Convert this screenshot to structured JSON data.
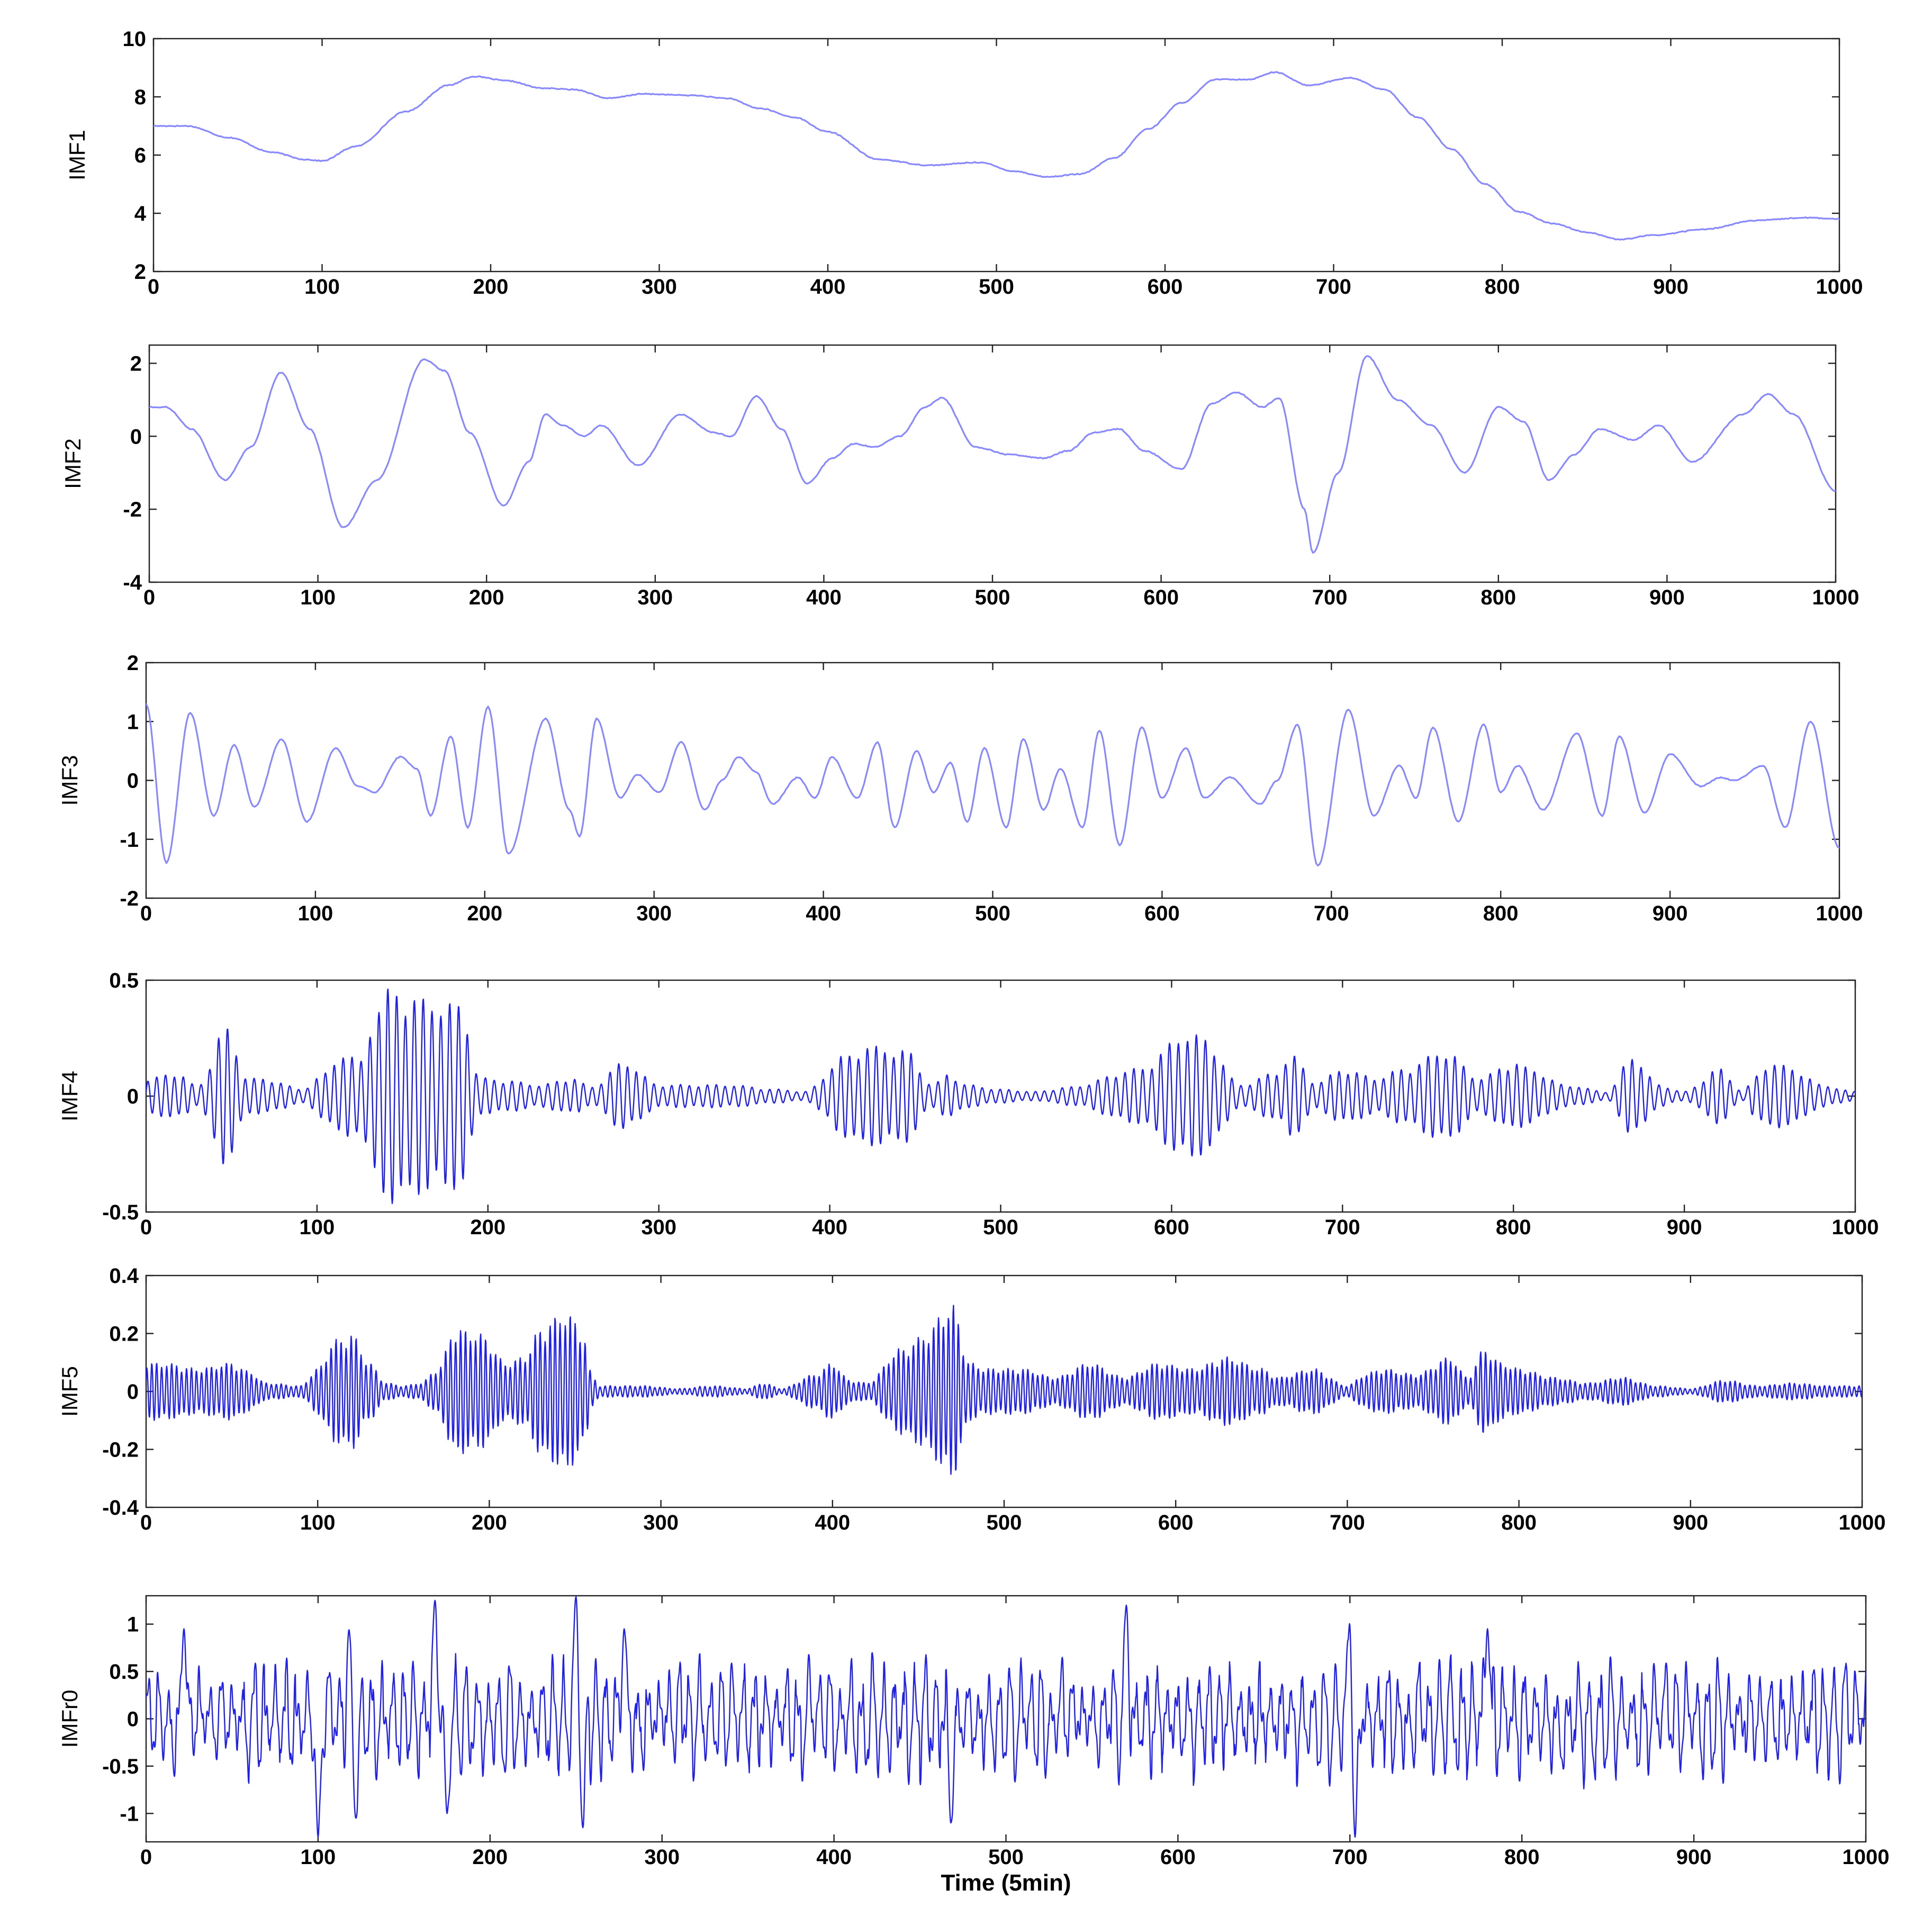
{
  "colors": {
    "line_light": "#8888ff",
    "line_dark": "#2020ee",
    "axis": "#222222"
  },
  "chart_data": [
    {
      "type": "line",
      "ylabel": "IMF1",
      "xlim": [
        0,
        1000
      ],
      "ylim": [
        2,
        10
      ],
      "xticks": [
        0,
        100,
        200,
        300,
        400,
        500,
        600,
        700,
        800,
        900,
        1000
      ],
      "yticks": [
        2,
        4,
        6,
        8,
        10
      ],
      "series": [
        {
          "style": "light",
          "kind": "keypoints",
          "x": [
            0,
            20,
            45,
            70,
            90,
            100,
            120,
            150,
            175,
            190,
            210,
            230,
            250,
            270,
            290,
            320,
            340,
            360,
            380,
            400,
            430,
            460,
            490,
            510,
            530,
            550,
            570,
            590,
            610,
            630,
            650,
            665,
            685,
            710,
            730,
            750,
            770,
            790,
            810,
            830,
            850,
            870,
            890,
            920,
            950,
            980,
            1000
          ],
          "y": [
            7.0,
            7.0,
            6.6,
            6.1,
            5.85,
            5.8,
            6.3,
            7.5,
            8.4,
            8.7,
            8.55,
            8.3,
            8.25,
            7.95,
            8.1,
            8.05,
            7.95,
            7.6,
            7.3,
            6.8,
            5.85,
            5.65,
            5.75,
            5.45,
            5.25,
            5.35,
            5.9,
            6.9,
            7.8,
            8.6,
            8.6,
            8.85,
            8.4,
            8.65,
            8.25,
            7.3,
            6.2,
            5.0,
            4.05,
            3.65,
            3.35,
            3.1,
            3.25,
            3.45,
            3.75,
            3.85,
            3.8
          ]
        }
      ]
    },
    {
      "type": "line",
      "ylabel": "IMF2",
      "xlim": [
        0,
        1000
      ],
      "ylim": [
        -4,
        2.5
      ],
      "xticks": [
        0,
        100,
        200,
        300,
        400,
        500,
        600,
        700,
        800,
        900,
        1000
      ],
      "yticks": [
        -4,
        -2,
        0,
        2
      ],
      "series": [
        {
          "style": "light",
          "kind": "keypoints",
          "x": [
            0,
            10,
            25,
            45,
            60,
            78,
            95,
            115,
            135,
            163,
            175,
            190,
            210,
            225,
            235,
            245,
            258,
            268,
            290,
            315,
            335,
            345,
            360,
            375,
            390,
            405,
            418,
            430,
            445,
            460,
            470,
            490,
            510,
            530,
            545,
            560,
            575,
            590,
            612,
            630,
            645,
            660,
            670,
            685,
            690,
            705,
            722,
            740,
            760,
            780,
            800,
            815,
            830,
            845,
            860,
            880,
            895,
            915,
            945,
            960,
            975,
            1000
          ],
          "y": [
            0.8,
            0.8,
            0.2,
            -1.2,
            -0.3,
            1.75,
            0.2,
            -2.5,
            -1.2,
            2.1,
            1.8,
            0.1,
            -1.9,
            -0.7,
            0.6,
            0.3,
            0.0,
            0.3,
            -0.8,
            0.6,
            0.1,
            0.0,
            1.1,
            0.2,
            -1.3,
            -0.6,
            -0.2,
            -0.3,
            0.0,
            0.8,
            1.05,
            -0.3,
            -0.5,
            -0.6,
            -0.4,
            0.1,
            0.2,
            -0.4,
            -0.9,
            0.9,
            1.2,
            0.8,
            1.05,
            -2.0,
            -3.2,
            -1.0,
            2.2,
            1.0,
            0.3,
            -1.0,
            0.8,
            0.4,
            -1.2,
            -0.5,
            0.2,
            -0.1,
            0.3,
            -0.7,
            0.6,
            1.15,
            0.6,
            -1.5
          ]
        }
      ]
    },
    {
      "type": "line",
      "ylabel": "IMF3",
      "xlim": [
        0,
        1000
      ],
      "ylim": [
        -2,
        2
      ],
      "xticks": [
        0,
        100,
        200,
        300,
        400,
        500,
        600,
        700,
        800,
        900,
        1000
      ],
      "yticks": [
        -2,
        -1,
        0,
        1,
        2
      ],
      "series": [
        {
          "style": "light",
          "kind": "keypoints",
          "x": [
            0,
            12,
            26,
            40,
            52,
            64,
            80,
            95,
            112,
            125,
            135,
            150,
            160,
            168,
            180,
            190,
            202,
            214,
            236,
            250,
            256,
            266,
            280,
            290,
            303,
            316,
            330,
            340,
            350,
            360,
            370,
            385,
            395,
            405,
            420,
            432,
            442,
            455,
            465,
            475,
            485,
            495,
            508,
            518,
            530,
            540,
            553,
            563,
            575,
            588,
            600,
            614,
            625,
            640,
            658,
            668,
            680,
            692,
            710,
            725,
            740,
            750,
            760,
            775,
            790,
            800,
            810,
            825,
            845,
            860,
            870,
            885,
            900,
            918,
            930,
            938,
            955,
            968,
            983,
            1000
          ],
          "y": [
            1.3,
            -1.4,
            1.15,
            -0.6,
            0.6,
            -0.45,
            0.7,
            -0.7,
            0.55,
            -0.1,
            -0.2,
            0.4,
            0.2,
            -0.6,
            0.75,
            -0.8,
            1.25,
            -1.25,
            1.05,
            -0.5,
            -0.95,
            1.05,
            -0.3,
            0.1,
            -0.2,
            0.65,
            -0.5,
            0.0,
            0.4,
            0.15,
            -0.4,
            0.05,
            -0.3,
            0.4,
            -0.3,
            0.65,
            -0.8,
            0.5,
            -0.2,
            0.3,
            -0.7,
            0.55,
            -0.8,
            0.7,
            -0.5,
            0.2,
            -0.8,
            0.85,
            -1.1,
            0.9,
            -0.3,
            0.55,
            -0.3,
            0.05,
            -0.4,
            0.0,
            0.95,
            -1.45,
            1.2,
            -0.6,
            0.25,
            -0.3,
            0.9,
            -0.7,
            0.95,
            -0.2,
            0.25,
            -0.5,
            0.8,
            -0.6,
            0.75,
            -0.55,
            0.45,
            -0.1,
            0.05,
            0.0,
            0.25,
            -0.8,
            1.0,
            -1.15
          ]
        }
      ]
    },
    {
      "type": "line",
      "ylabel": "IMF4",
      "xlim": [
        0,
        1000
      ],
      "ylim": [
        -0.5,
        0.5
      ],
      "xticks": [
        0,
        100,
        200,
        300,
        400,
        500,
        600,
        700,
        800,
        900,
        1000
      ],
      "yticks": [
        -0.5,
        0,
        0.5
      ],
      "series": [
        {
          "style": "dark",
          "kind": "oscillation",
          "period": 5.2,
          "envelope_x": [
            0,
            20,
            30,
            46,
            60,
            75,
            90,
            105,
            115,
            125,
            135,
            143,
            165,
            185,
            195,
            210,
            230,
            250,
            260,
            280,
            300,
            320,
            340,
            370,
            385,
            410,
            420,
            445,
            460,
            470,
            480,
            500,
            520,
            540,
            580,
            610,
            620,
            640,
            660,
            670,
            685,
            700,
            720,
            735,
            760,
            780,
            800,
            810,
            830,
            855,
            870,
            885,
            900,
            920,
            935,
            940,
            950,
            965,
            980,
            1000
          ],
          "envelope_y": [
            0.08,
            0.1,
            0.04,
            0.3,
            0.08,
            0.07,
            0.03,
            0.1,
            0.2,
            0.15,
            0.4,
            0.47,
            0.42,
            0.4,
            0.08,
            0.07,
            0.05,
            0.08,
            0.04,
            0.15,
            0.05,
            0.05,
            0.05,
            0.03,
            0.02,
            0.18,
            0.22,
            0.2,
            0.05,
            0.1,
            0.05,
            0.03,
            0.02,
            0.04,
            0.12,
            0.28,
            0.25,
            0.05,
            0.1,
            0.18,
            0.06,
            0.12,
            0.08,
            0.12,
            0.2,
            0.08,
            0.15,
            0.12,
            0.05,
            0.02,
            0.18,
            0.05,
            0.02,
            0.12,
            0.02,
            0.08,
            0.15,
            0.12,
            0.05,
            0.02
          ]
        }
      ]
    },
    {
      "type": "line",
      "ylabel": "IMF5",
      "xlim": [
        0,
        1000
      ],
      "ylim": [
        -0.4,
        0.4
      ],
      "xticks": [
        0,
        100,
        200,
        300,
        400,
        500,
        600,
        700,
        800,
        900,
        1000
      ],
      "yticks": [
        -0.4,
        -0.2,
        0,
        0.2,
        0.4
      ],
      "series": [
        {
          "style": "dark",
          "kind": "oscillation",
          "period": 2.9,
          "envelope_x": [
            0,
            10,
            30,
            50,
            60,
            70,
            90,
            100,
            110,
            120,
            130,
            140,
            150,
            160,
            170,
            180,
            195,
            210,
            220,
            230,
            240,
            245,
            255,
            260,
            265,
            290,
            310,
            330,
            350,
            360,
            370,
            390,
            400,
            410,
            420,
            440,
            455,
            465,
            470,
            480,
            490,
            510,
            530,
            550,
            570,
            590,
            610,
            630,
            650,
            660,
            680,
            700,
            710,
            720,
            740,
            760,
            770,
            780,
            790,
            800,
            820,
            840,
            860,
            880,
            900,
            920,
            940,
            960,
            980,
            1000
          ],
          "envelope_y": [
            0.1,
            0.1,
            0.08,
            0.1,
            0.07,
            0.03,
            0.02,
            0.08,
            0.18,
            0.2,
            0.1,
            0.03,
            0.02,
            0.03,
            0.08,
            0.22,
            0.2,
            0.1,
            0.12,
            0.22,
            0.26,
            0.28,
            0.2,
            0.05,
            0.02,
            0.02,
            0.01,
            0.02,
            0.01,
            0.03,
            0.01,
            0.06,
            0.1,
            0.04,
            0.03,
            0.15,
            0.2,
            0.28,
            0.3,
            0.1,
            0.08,
            0.08,
            0.05,
            0.1,
            0.05,
            0.1,
            0.08,
            0.12,
            0.08,
            0.05,
            0.08,
            0.02,
            0.06,
            0.08,
            0.06,
            0.12,
            0.05,
            0.15,
            0.1,
            0.08,
            0.05,
            0.03,
            0.05,
            0.02,
            0.01,
            0.04,
            0.02,
            0.03,
            0.02,
            0.02
          ]
        }
      ]
    },
    {
      "type": "line",
      "ylabel": "IMFr0",
      "xlabel": "Time (5min)",
      "xlim": [
        0,
        1000
      ],
      "ylim": [
        -1.3,
        1.3
      ],
      "xticks": [
        0,
        100,
        200,
        300,
        400,
        500,
        600,
        700,
        800,
        900,
        1000
      ],
      "yticks": [
        -1,
        -0.5,
        0,
        0.5,
        1
      ],
      "series": [
        {
          "style": "dark",
          "kind": "noise",
          "amplitude": 0.55,
          "spikes_x": [
            22,
            100,
            118,
            122,
            168,
            175,
            250,
            254,
            278,
            468,
            570,
            700,
            703,
            780
          ],
          "spikes_y": [
            0.95,
            -1.25,
            0.95,
            -1.05,
            1.25,
            -1.0,
            1.3,
            -1.15,
            0.95,
            -1.1,
            1.2,
            1.1,
            -1.25,
            0.95
          ]
        }
      ]
    }
  ]
}
